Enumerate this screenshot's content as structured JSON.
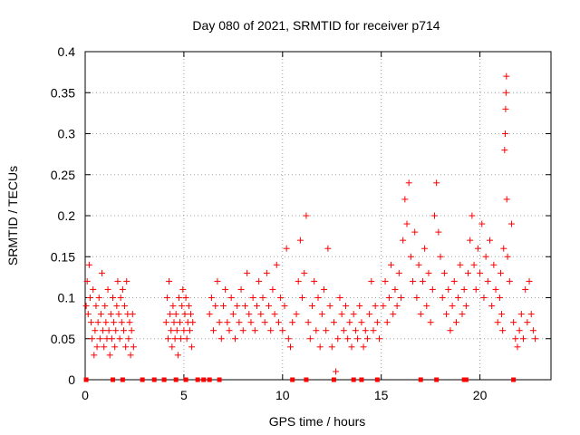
{
  "chart_data": {
    "type": "scatter",
    "title": "Day 080 of 2021, SRMTID for receiver p714",
    "xlabel": "GPS time / hours",
    "ylabel": "SRMTID / TECUs",
    "xlim": [
      0,
      23.6
    ],
    "ylim": [
      0,
      0.4
    ],
    "grid": true,
    "marker": "+",
    "color": "#ff0000",
    "x_ticks": [
      "0",
      "5",
      "10",
      "15",
      "20"
    ],
    "x_tick_values": [
      0,
      5,
      10,
      15,
      20
    ],
    "y_ticks": [
      "0",
      "0.05",
      "0.1",
      "0.15",
      "0.2",
      "0.25",
      "0.3",
      "0.35",
      "0.4"
    ],
    "y_tick_values": [
      0,
      0.05,
      0.1,
      0.15,
      0.2,
      0.25,
      0.3,
      0.35,
      0.4
    ],
    "series": [
      {
        "name": "SRMTID",
        "points": [
          [
            0.05,
            0.09
          ],
          [
            0.1,
            0.12
          ],
          [
            0.15,
            0.08
          ],
          [
            0.2,
            0.14
          ],
          [
            0.25,
            0.1
          ],
          [
            0.3,
            0.07
          ],
          [
            0.35,
            0.05
          ],
          [
            0.4,
            0.11
          ],
          [
            0.45,
            0.03
          ],
          [
            0.5,
            0.06
          ],
          [
            0.55,
            0.09
          ],
          [
            0.6,
            0.04
          ],
          [
            0.65,
            0.07
          ],
          [
            0.7,
            0.1
          ],
          [
            0.75,
            0.05
          ],
          [
            0.8,
            0.08
          ],
          [
            0.85,
            0.13
          ],
          [
            0.9,
            0.06
          ],
          [
            0.95,
            0.04
          ],
          [
            1.0,
            0.09
          ],
          [
            1.05,
            0.07
          ],
          [
            1.1,
            0.05
          ],
          [
            1.15,
            0.11
          ],
          [
            1.2,
            0.06
          ],
          [
            1.25,
            0.03
          ],
          [
            1.3,
            0.08
          ],
          [
            1.35,
            0.05
          ],
          [
            1.4,
            0.1
          ],
          [
            1.45,
            0.07
          ],
          [
            1.5,
            0.04
          ],
          [
            1.55,
            0.06
          ],
          [
            1.6,
            0.09
          ],
          [
            1.65,
            0.12
          ],
          [
            1.7,
            0.08
          ],
          [
            1.75,
            0.05
          ],
          [
            1.8,
            0.1
          ],
          [
            1.85,
            0.07
          ],
          [
            1.9,
            0.11
          ],
          [
            1.95,
            0.06
          ],
          [
            2.0,
            0.09
          ],
          [
            2.05,
            0.04
          ],
          [
            2.1,
            0.12
          ],
          [
            2.15,
            0.08
          ],
          [
            2.2,
            0.05
          ],
          [
            2.25,
            0.07
          ],
          [
            2.3,
            0.03
          ],
          [
            2.35,
            0.06
          ],
          [
            2.4,
            0.08
          ],
          [
            2.45,
            0.04
          ],
          [
            4.1,
            0.07
          ],
          [
            4.15,
            0.1
          ],
          [
            4.2,
            0.05
          ],
          [
            4.25,
            0.12
          ],
          [
            4.3,
            0.08
          ],
          [
            4.35,
            0.06
          ],
          [
            4.4,
            0.04
          ],
          [
            4.45,
            0.09
          ],
          [
            4.5,
            0.07
          ],
          [
            4.55,
            0.05
          ],
          [
            4.6,
            0.08
          ],
          [
            4.65,
            0.06
          ],
          [
            4.7,
            0.03
          ],
          [
            4.75,
            0.1
          ],
          [
            4.8,
            0.07
          ],
          [
            4.85,
            0.05
          ],
          [
            4.9,
            0.09
          ],
          [
            4.95,
            0.11
          ],
          [
            5.0,
            0.06
          ],
          [
            5.05,
            0.08
          ],
          [
            5.1,
            0.1
          ],
          [
            5.15,
            0.05
          ],
          [
            5.2,
            0.07
          ],
          [
            5.25,
            0.09
          ],
          [
            5.3,
            0.06
          ],
          [
            5.35,
            0.08
          ],
          [
            5.4,
            0.04
          ],
          [
            5.45,
            0.07
          ],
          [
            6.3,
            0.08
          ],
          [
            6.4,
            0.1
          ],
          [
            6.5,
            0.06
          ],
          [
            6.6,
            0.09
          ],
          [
            6.7,
            0.12
          ],
          [
            6.8,
            0.07
          ],
          [
            6.9,
            0.05
          ],
          [
            7.0,
            0.09
          ],
          [
            7.1,
            0.11
          ],
          [
            7.2,
            0.07
          ],
          [
            7.3,
            0.06
          ],
          [
            7.4,
            0.1
          ],
          [
            7.5,
            0.08
          ],
          [
            7.6,
            0.05
          ],
          [
            7.7,
            0.09
          ],
          [
            7.8,
            0.07
          ],
          [
            7.9,
            0.11
          ],
          [
            8.0,
            0.06
          ],
          [
            8.1,
            0.09
          ],
          [
            8.2,
            0.13
          ],
          [
            8.3,
            0.08
          ],
          [
            8.4,
            0.07
          ],
          [
            8.5,
            0.1
          ],
          [
            8.6,
            0.06
          ],
          [
            8.7,
            0.09
          ],
          [
            8.8,
            0.12
          ],
          [
            8.9,
            0.08
          ],
          [
            9.0,
            0.1
          ],
          [
            9.1,
            0.07
          ],
          [
            9.2,
            0.13
          ],
          [
            9.3,
            0.09
          ],
          [
            9.4,
            0.06
          ],
          [
            9.5,
            0.11
          ],
          [
            9.6,
            0.08
          ],
          [
            9.7,
            0.14
          ],
          [
            9.8,
            0.07
          ],
          [
            9.9,
            0.1
          ],
          [
            10.0,
            0.06
          ],
          [
            10.1,
            0.09
          ],
          [
            10.2,
            0.16
          ],
          [
            10.3,
            0.05
          ],
          [
            10.4,
            0.04
          ],
          [
            10.5,
            0.07
          ],
          [
            10.7,
            0.08
          ],
          [
            10.8,
            0.12
          ],
          [
            10.9,
            0.17
          ],
          [
            11.0,
            0.1
          ],
          [
            11.1,
            0.13
          ],
          [
            11.2,
            0.2
          ],
          [
            11.3,
            0.07
          ],
          [
            11.4,
            0.05
          ],
          [
            11.5,
            0.09
          ],
          [
            11.6,
            0.12
          ],
          [
            11.7,
            0.06
          ],
          [
            11.8,
            0.1
          ],
          [
            11.9,
            0.04
          ],
          [
            12.0,
            0.08
          ],
          [
            12.1,
            0.11
          ],
          [
            12.2,
            0.06
          ],
          [
            12.3,
            0.16
          ],
          [
            12.4,
            0.09
          ],
          [
            12.5,
            0.04
          ],
          [
            12.6,
            0.07
          ],
          [
            12.7,
            0.01
          ],
          [
            12.8,
            0.05
          ],
          [
            12.9,
            0.1
          ],
          [
            13.0,
            0.08
          ],
          [
            13.1,
            0.06
          ],
          [
            13.2,
            0.09
          ],
          [
            13.3,
            0.05
          ],
          [
            13.4,
            0.07
          ],
          [
            13.5,
            0.04
          ],
          [
            13.6,
            0.08
          ],
          [
            13.7,
            0.06
          ],
          [
            13.8,
            0.05
          ],
          [
            13.9,
            0.09
          ],
          [
            14.0,
            0.07
          ],
          [
            14.1,
            0.04
          ],
          [
            14.2,
            0.06
          ],
          [
            14.3,
            0.05
          ],
          [
            14.4,
            0.08
          ],
          [
            14.5,
            0.12
          ],
          [
            14.6,
            0.06
          ],
          [
            14.7,
            0.09
          ],
          [
            14.8,
            0.07
          ],
          [
            14.9,
            0.05
          ],
          [
            15.1,
            0.09
          ],
          [
            15.2,
            0.12
          ],
          [
            15.3,
            0.07
          ],
          [
            15.4,
            0.1
          ],
          [
            15.5,
            0.14
          ],
          [
            15.6,
            0.08
          ],
          [
            15.7,
            0.11
          ],
          [
            15.8,
            0.09
          ],
          [
            15.9,
            0.13
          ],
          [
            16.0,
            0.1
          ],
          [
            16.1,
            0.17
          ],
          [
            16.2,
            0.22
          ],
          [
            16.3,
            0.19
          ],
          [
            16.4,
            0.24
          ],
          [
            16.5,
            0.15
          ],
          [
            16.6,
            0.12
          ],
          [
            16.7,
            0.18
          ],
          [
            16.8,
            0.1
          ],
          [
            16.9,
            0.14
          ],
          [
            17.0,
            0.08
          ],
          [
            17.1,
            0.12
          ],
          [
            17.2,
            0.16
          ],
          [
            17.3,
            0.09
          ],
          [
            17.4,
            0.13
          ],
          [
            17.5,
            0.07
          ],
          [
            17.6,
            0.11
          ],
          [
            17.7,
            0.2
          ],
          [
            17.8,
            0.24
          ],
          [
            17.9,
            0.18
          ],
          [
            18.0,
            0.15
          ],
          [
            18.1,
            0.1
          ],
          [
            18.2,
            0.13
          ],
          [
            18.3,
            0.08
          ],
          [
            18.4,
            0.11
          ],
          [
            18.5,
            0.06
          ],
          [
            18.6,
            0.09
          ],
          [
            18.7,
            0.12
          ],
          [
            18.8,
            0.07
          ],
          [
            18.9,
            0.1
          ],
          [
            19.0,
            0.14
          ],
          [
            19.1,
            0.08
          ],
          [
            19.2,
            0.11
          ],
          [
            19.3,
            0.09
          ],
          [
            19.4,
            0.13
          ],
          [
            19.5,
            0.17
          ],
          [
            19.6,
            0.2
          ],
          [
            19.7,
            0.14
          ],
          [
            19.8,
            0.11
          ],
          [
            19.9,
            0.16
          ],
          [
            20.0,
            0.13
          ],
          [
            20.1,
            0.19
          ],
          [
            20.2,
            0.1
          ],
          [
            20.3,
            0.15
          ],
          [
            20.4,
            0.12
          ],
          [
            20.5,
            0.17
          ],
          [
            20.6,
            0.09
          ],
          [
            20.7,
            0.14
          ],
          [
            20.8,
            0.11
          ],
          [
            20.9,
            0.07
          ],
          [
            21.0,
            0.1
          ],
          [
            21.05,
            0.13
          ],
          [
            21.1,
            0.08
          ],
          [
            21.15,
            0.06
          ],
          [
            21.2,
            0.16
          ],
          [
            21.25,
            0.28
          ],
          [
            21.28,
            0.3
          ],
          [
            21.3,
            0.33
          ],
          [
            21.32,
            0.35
          ],
          [
            21.34,
            0.37
          ],
          [
            21.36,
            0.22
          ],
          [
            21.4,
            0.15
          ],
          [
            21.5,
            0.12
          ],
          [
            21.6,
            0.19
          ],
          [
            21.7,
            0.07
          ],
          [
            21.8,
            0.05
          ],
          [
            21.9,
            0.04
          ],
          [
            22.0,
            0.06
          ],
          [
            22.1,
            0.08
          ],
          [
            22.2,
            0.05
          ],
          [
            22.3,
            0.11
          ],
          [
            22.4,
            0.07
          ],
          [
            22.5,
            0.12
          ],
          [
            22.6,
            0.08
          ],
          [
            22.7,
            0.06
          ],
          [
            22.8,
            0.05
          ]
        ]
      }
    ],
    "zero_values_x": [
      0.05,
      1.4,
      1.9,
      2.9,
      3.5,
      4.0,
      4.6,
      5.1,
      5.7,
      6.0,
      6.3,
      6.8,
      10.5,
      11.2,
      12.6,
      13.6,
      14.0,
      14.8,
      17.0,
      17.8,
      19.2,
      19.3,
      21.7
    ]
  }
}
